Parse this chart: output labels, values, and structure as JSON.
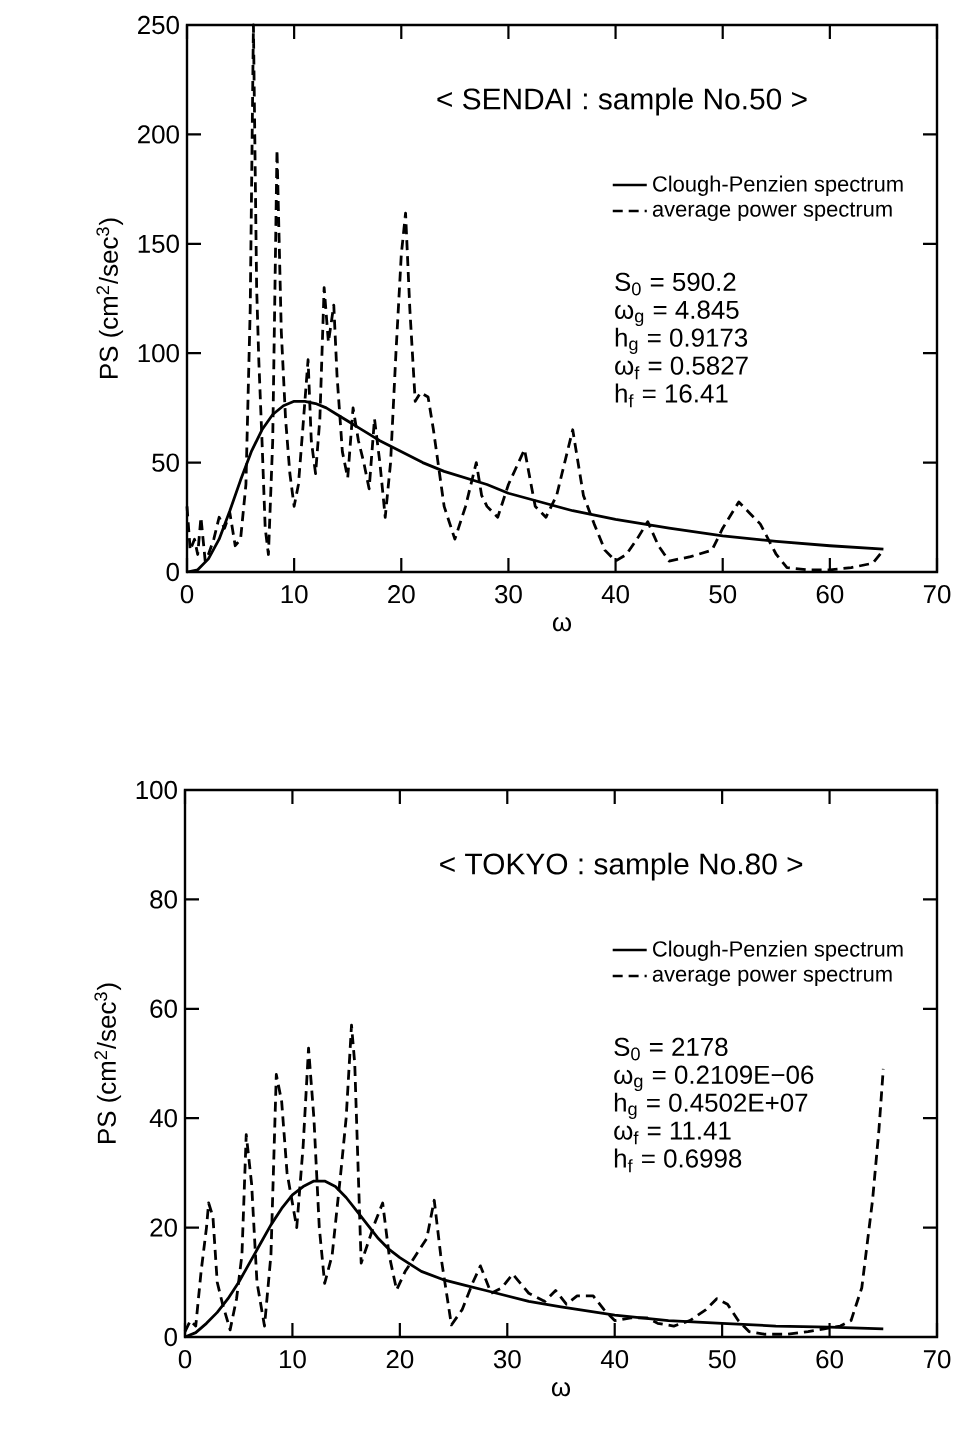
{
  "chart_data": [
    {
      "type": "line",
      "title": "< SENDAI : sample No.50 >",
      "xlabel": "ω",
      "ylabel": "PS (cm$^{2}$/sec$^{3}$)",
      "xlim": [
        0,
        70
      ],
      "xticks": [
        0,
        10,
        20,
        30,
        40,
        50,
        60,
        70
      ],
      "ylim": [
        0,
        250
      ],
      "yticks": [
        0,
        50,
        100,
        150,
        200,
        250
      ],
      "legend": "top right",
      "marker": "none",
      "grid": false,
      "annotations": [
        "S$_{0}$ = 590.2",
        "ω$_{g}$ = 4.845",
        "h$_{g}$ = 0.9173",
        "ω$_{f}$ = 0.5827",
        "h$_{f}$ = 16.41"
      ],
      "series": [
        {
          "name": "Clough-Penzien spectrum",
          "color": "#000000",
          "line_style": "solid",
          "x": [
            0,
            1,
            2,
            3,
            4,
            5,
            6,
            7,
            8,
            9,
            10,
            11,
            12,
            13,
            14,
            15,
            16,
            17,
            18,
            20,
            22,
            24,
            26,
            28,
            30,
            33,
            36,
            40,
            45,
            50,
            55,
            60,
            65
          ],
          "values": [
            0,
            1,
            6,
            15,
            28,
            42,
            55,
            65,
            72,
            76,
            78,
            78,
            77,
            75,
            72,
            69,
            66,
            63,
            60,
            55,
            50,
            46,
            43,
            40,
            36,
            32,
            28,
            24,
            20,
            16.5,
            14,
            12,
            10.5
          ]
        },
        {
          "name": "average power spectrum",
          "color": "#000000",
          "line_style": "dashed",
          "x": [
            0,
            0.3,
            0.7,
            1,
            1.3,
            1.7,
            2,
            2.5,
            3,
            3.5,
            4,
            4.5,
            5,
            5.5,
            5.9,
            6.2,
            6.5,
            6.7,
            7,
            7.3,
            7.6,
            8,
            8.4,
            8.8,
            9.2,
            9.6,
            10,
            10.4,
            10.8,
            11.3,
            11.6,
            12,
            12.4,
            12.8,
            13.2,
            13.7,
            14,
            14.5,
            15,
            15.5,
            16,
            16.5,
            17,
            17.5,
            18,
            18.5,
            19,
            19.5,
            20,
            20.4,
            20.8,
            21.3,
            21.8,
            22.5,
            23,
            24,
            25,
            26,
            27,
            27.5,
            28,
            29,
            30,
            31.5,
            32.5,
            33.5,
            34.5,
            35,
            36,
            37,
            38,
            39,
            40,
            41,
            42,
            43,
            44,
            45,
            47,
            49,
            50,
            51.5,
            52.5,
            53.5,
            55,
            56,
            58,
            60,
            62,
            64,
            65
          ],
          "values": [
            30,
            10,
            15,
            8,
            25,
            5,
            8,
            15,
            25,
            20,
            27,
            12,
            15,
            40,
            120,
            250,
            130,
            97,
            60,
            20,
            8,
            60,
            193,
            110,
            70,
            45,
            30,
            40,
            65,
            97,
            60,
            45,
            70,
            130,
            105,
            122,
            90,
            55,
            43,
            75,
            60,
            50,
            38,
            70,
            50,
            25,
            50,
            100,
            145,
            164,
            120,
            78,
            82,
            80,
            65,
            30,
            15,
            30,
            50,
            35,
            30,
            25,
            40,
            56,
            30,
            25,
            35,
            45,
            65,
            35,
            22,
            10,
            5,
            8,
            15,
            23,
            12,
            5,
            7,
            10,
            20,
            32,
            27,
            22,
            8,
            2,
            1,
            1,
            2,
            4,
            10
          ]
        }
      ]
    },
    {
      "type": "line",
      "title": "< TOKYO : sample No.80 >",
      "xlabel": "ω",
      "ylabel": "PS (cm$^{2}$/sec$^{3}$)",
      "xlim": [
        0,
        70
      ],
      "xticks": [
        0,
        10,
        20,
        30,
        40,
        50,
        60,
        70
      ],
      "ylim": [
        0,
        100
      ],
      "yticks": [
        0,
        20,
        40,
        60,
        80,
        100
      ],
      "legend": "top right",
      "marker": "none",
      "grid": false,
      "annotations": [
        "S$_{0}$ = 2178",
        "ω$_{g}$ = 0.2109E−06",
        "h$_{g}$ = 0.4502E+07",
        "ω$_{f}$ = 11.41",
        "h$_{f}$ = 0.6998"
      ],
      "series": [
        {
          "name": "Clough-Penzien spectrum",
          "color": "#000000",
          "line_style": "solid",
          "x": [
            0,
            1,
            2,
            3,
            4,
            5,
            6,
            7,
            8,
            9,
            10,
            11,
            12,
            13,
            14,
            15,
            16,
            17,
            18,
            19,
            20,
            22,
            24,
            26,
            28,
            30,
            32,
            35,
            40,
            45,
            50,
            55,
            60,
            65
          ],
          "values": [
            0,
            0.8,
            2.5,
            4.5,
            7,
            10,
            13.5,
            17,
            20.5,
            23.5,
            26,
            27.5,
            28.5,
            28.5,
            27.5,
            25.5,
            23,
            20.5,
            18,
            16,
            14.5,
            12,
            10.5,
            9.5,
            8.5,
            7.5,
            6.5,
            5.5,
            4,
            3,
            2.5,
            2,
            1.8,
            1.5
          ]
        },
        {
          "name": "average power spectrum",
          "color": "#000000",
          "line_style": "dashed",
          "x": [
            0,
            0.5,
            1,
            1.5,
            2,
            2.2,
            2.6,
            3,
            3.5,
            4.2,
            4.8,
            5.3,
            5.7,
            6.2,
            6.7,
            7.4,
            8,
            8.5,
            9,
            9.5,
            10.4,
            11,
            11.5,
            12,
            12.5,
            13,
            13.7,
            14.5,
            15,
            15.5,
            15.8,
            16.4,
            17,
            17.7,
            18.4,
            19,
            19.7,
            20.5,
            21.5,
            22.5,
            23.2,
            23.8,
            24.8,
            25.8,
            26.8,
            27.5,
            28.5,
            29.5,
            30.5,
            32,
            33.5,
            34.5,
            35.5,
            36.5,
            38,
            39,
            40,
            41.5,
            43,
            44,
            45.5,
            47,
            48.5,
            49.5,
            50.5,
            51.5,
            52.5,
            54,
            56,
            58,
            59.5,
            61,
            62,
            63,
            64,
            64.6,
            65
          ],
          "values": [
            1,
            3,
            2,
            12,
            20,
            24.5,
            22,
            10,
            6,
            1.3,
            7,
            15,
            37,
            28,
            10,
            2,
            15,
            48,
            43,
            30,
            20,
            35,
            52.8,
            40,
            20,
            9.8,
            15,
            30,
            40,
            57,
            50,
            13.5,
            17,
            21,
            24.5,
            15,
            8.6,
            12,
            15,
            18,
            25,
            15,
            2.2,
            5,
            10,
            13,
            8,
            9,
            11.5,
            8,
            6.5,
            8.5,
            6,
            7.5,
            7.5,
            5,
            3,
            3.5,
            3.5,
            2.5,
            2,
            3,
            5,
            7,
            6,
            3,
            1,
            0.5,
            0.5,
            1,
            1.5,
            2,
            3,
            9,
            25,
            38,
            49
          ]
        }
      ]
    }
  ]
}
